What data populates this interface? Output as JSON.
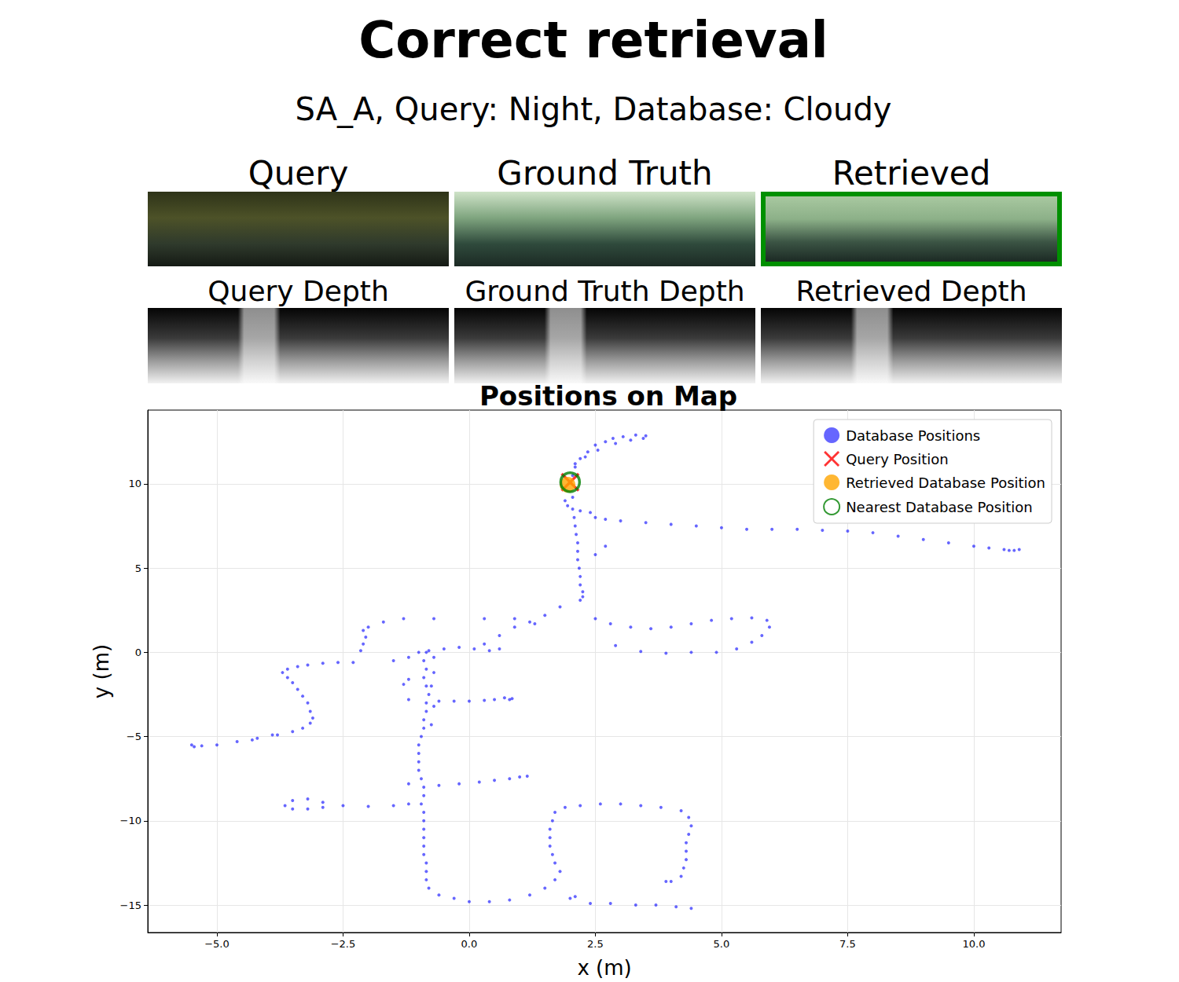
{
  "title": "Correct retrieval",
  "subtitle": "SA_A, Query: Night, Database: Cloudy",
  "images": [
    {
      "title": "Query"
    },
    {
      "title": "Ground Truth"
    },
    {
      "title": "Retrieved",
      "color": "#009000"
    },
    {
      "title": "Query Depth"
    },
    {
      "title": "Ground Truth Depth"
    },
    {
      "title": "Retrieved Depth"
    }
  ],
  "chart_data": {
    "type": "scatter",
    "title": "Positions on Map",
    "x_label": "x (m)",
    "y_label": "y (m)",
    "xlim": [
      -6.37,
      11.73
    ],
    "ylim": [
      -16.63,
      14.38
    ],
    "xticks": [
      {
        "value": -5,
        "label": "−5.0"
      },
      {
        "value": -2.5,
        "label": "−2.5"
      },
      {
        "value": 0,
        "label": "0.0"
      },
      2.5,
      {
        "value": 5,
        "label": "5.0"
      },
      7.5,
      {
        "value": 10,
        "label": "10.0"
      }
    ],
    "yticks": [
      {
        "value": -15,
        "label": "−15"
      },
      {
        "value": -10,
        "label": "−10"
      },
      {
        "value": -5,
        "label": "−5"
      },
      0,
      5,
      10
    ],
    "grid": true,
    "legend": "upper right",
    "series": [
      {
        "name": "Database Positions",
        "color": "#0000ff",
        "marker": "point",
        "x": [
          2.05,
          2.1,
          2.2,
          2.35,
          2.5,
          2.7,
          2.85,
          3.05,
          3.3,
          3.5,
          3.45,
          3.2,
          2.9,
          2.55,
          2.3,
          2.1,
          2.4,
          2.7,
          3.0,
          3.5,
          4.0,
          4.5,
          5.0,
          5.5,
          6.0,
          6.5,
          7.0,
          7.5,
          8.0,
          8.5,
          9.0,
          9.5,
          10.0,
          10.3,
          10.6,
          10.8,
          10.9,
          10.7,
          1.9,
          1.95,
          2.2,
          2.5,
          2.5,
          2.7,
          2.05,
          2.05,
          2.08,
          2.1,
          2.12,
          2.15,
          2.15,
          2.15,
          2.18,
          2.2,
          2.2,
          2.25,
          2.25,
          2.2,
          1.8,
          1.5,
          1.2,
          0.9,
          0.6,
          0.3,
          0.1,
          0.4,
          0.6,
          -0.2,
          -0.5,
          -0.8,
          -1.0,
          -2.0,
          -1.7,
          -1.3,
          -0.7,
          0.3,
          0.9,
          1.3,
          -2.1,
          -2.05,
          -2.1,
          -2.15,
          -2.3,
          -2.6,
          -2.9,
          -3.2,
          -3.4,
          -3.6,
          -3.7,
          -1.5,
          -1.2,
          2.5,
          2.8,
          3.2,
          3.6,
          4.0,
          4.4,
          4.8,
          5.2,
          5.6,
          5.9,
          5.95,
          5.8,
          5.6,
          5.3,
          4.9,
          4.4,
          3.9,
          3.4,
          2.9,
          -3.6,
          -3.5,
          -3.4,
          -3.3,
          -3.2,
          -3.15,
          -3.1,
          -3.15,
          -3.3,
          -3.5,
          -3.8,
          -4.2,
          -4.6,
          -5.0,
          -5.3,
          -5.5,
          -5.45,
          -3.9,
          -4.3,
          -0.85,
          -0.9,
          -0.85,
          -0.9,
          -0.85,
          -0.8,
          -0.85,
          -0.85,
          -0.9,
          -0.9,
          -0.95,
          -1.0,
          -1.0,
          -1.0,
          -1.0,
          -0.95,
          -0.9,
          -0.9,
          -0.95,
          -0.9,
          -0.9,
          -0.9,
          -0.9,
          -0.9,
          -0.9,
          -0.85,
          -0.85,
          -0.85,
          -0.8,
          -0.7,
          -0.7,
          -0.75,
          -0.7,
          -0.75,
          -1.2,
          -0.6,
          -0.3,
          0.0,
          0.3,
          0.5,
          0.7,
          0.85,
          0.8,
          -1.3,
          -1.2,
          -1.2,
          -0.6,
          -0.2,
          0.2,
          0.5,
          0.8,
          1.0,
          1.15,
          -1.2,
          -1.5,
          -2.0,
          -2.5,
          -2.9,
          -3.2,
          -3.5,
          -3.65,
          -3.5,
          -3.2,
          -2.9,
          -0.6,
          -0.3,
          0.0,
          0.4,
          0.8,
          1.2,
          1.5,
          1.7,
          1.8,
          1.7,
          1.65,
          1.6,
          1.6,
          1.6,
          1.65,
          1.7,
          1.9,
          2.2,
          2.6,
          3.0,
          3.4,
          3.8,
          4.2,
          4.35,
          4.4,
          4.35,
          4.3,
          4.3,
          4.3,
          4.25,
          4.2,
          4.0,
          3.9,
          4.4,
          4.1,
          3.7,
          3.3,
          2.8,
          2.4,
          2.0,
          2.1
        ],
        "y": [
          10.5,
          11.0,
          11.5,
          11.9,
          12.3,
          12.5,
          12.7,
          12.8,
          12.9,
          12.85,
          12.7,
          12.6,
          12.4,
          12.0,
          11.6,
          11.2,
          8.3,
          7.9,
          7.8,
          7.7,
          7.6,
          7.5,
          7.4,
          7.3,
          7.3,
          7.3,
          7.25,
          7.2,
          7.1,
          6.9,
          6.7,
          6.5,
          6.3,
          6.2,
          6.1,
          6.05,
          6.1,
          6.05,
          9.0,
          8.7,
          8.4,
          8.0,
          5.8,
          6.3,
          9.2,
          8.5,
          8.0,
          7.5,
          7.0,
          6.5,
          6.0,
          5.5,
          5.0,
          4.5,
          4.0,
          3.6,
          3.3,
          3.1,
          2.7,
          2.2,
          1.8,
          1.5,
          1.0,
          0.5,
          0.2,
          0.1,
          0.2,
          0.3,
          0.2,
          0.1,
          0.0,
          1.5,
          1.8,
          2.0,
          2.0,
          2.0,
          2.0,
          1.7,
          1.3,
          0.9,
          0.5,
          0.1,
          -0.6,
          -0.6,
          -0.65,
          -0.75,
          -0.85,
          -1.0,
          -1.2,
          -0.5,
          -0.3,
          2.0,
          1.7,
          1.5,
          1.4,
          1.5,
          1.7,
          1.9,
          2.0,
          2.05,
          1.9,
          1.5,
          1.0,
          0.6,
          0.2,
          0.0,
          0.0,
          -0.05,
          0.05,
          0.4,
          -1.5,
          -1.8,
          -2.2,
          -2.6,
          -3.0,
          -3.5,
          -3.9,
          -4.2,
          -4.5,
          -4.7,
          -4.9,
          -5.1,
          -5.3,
          -5.5,
          -5.55,
          -5.5,
          -5.6,
          -4.9,
          -5.2,
          0.0,
          -0.5,
          -1.0,
          -1.5,
          -2.0,
          -2.5,
          -3.0,
          -3.5,
          -4.0,
          -4.5,
          -5.0,
          -5.5,
          -6.0,
          -6.5,
          -7.0,
          -7.5,
          -8.0,
          -8.5,
          -9.0,
          -9.5,
          -10.0,
          -10.5,
          -11.0,
          -11.5,
          -12.0,
          -12.5,
          -13.0,
          -13.5,
          -14.0,
          -0.3,
          -1.2,
          -2.0,
          -3.2,
          -4.3,
          -2.8,
          -2.9,
          -2.9,
          -2.9,
          -2.85,
          -2.8,
          -2.7,
          -2.75,
          -2.8,
          -1.9,
          -1.6,
          -7.8,
          -7.9,
          -7.8,
          -7.7,
          -7.6,
          -7.5,
          -7.4,
          -7.35,
          -9.0,
          -9.1,
          -9.15,
          -9.1,
          -9.2,
          -9.3,
          -9.3,
          -9.1,
          -8.8,
          -8.7,
          -8.9,
          -14.4,
          -14.6,
          -14.8,
          -14.8,
          -14.7,
          -14.4,
          -14.0,
          -13.5,
          -13.0,
          -12.5,
          -12.0,
          -11.5,
          -11.0,
          -10.5,
          -10.0,
          -9.5,
          -9.2,
          -9.1,
          -9.0,
          -9.0,
          -9.1,
          -9.2,
          -9.4,
          -9.8,
          -10.3,
          -10.8,
          -11.3,
          -11.8,
          -12.3,
          -12.8,
          -13.3,
          -13.6,
          -13.6,
          -15.2,
          -15.1,
          -15.0,
          -15.0,
          -14.9,
          -14.9,
          -14.6,
          -14.5
        ]
      },
      {
        "name": "Query Position",
        "color": "#ff0000",
        "marker": "x",
        "x": [
          2.0
        ],
        "y": [
          10.1
        ]
      },
      {
        "name": "Retrieved Database Position",
        "color": "#ffa500",
        "marker": "circle",
        "x": [
          1.95
        ],
        "y": [
          9.95
        ]
      },
      {
        "name": "Nearest Database Position",
        "color": "#008000",
        "marker": "ring",
        "x": [
          2.0
        ],
        "y": [
          10.1
        ]
      }
    ]
  }
}
